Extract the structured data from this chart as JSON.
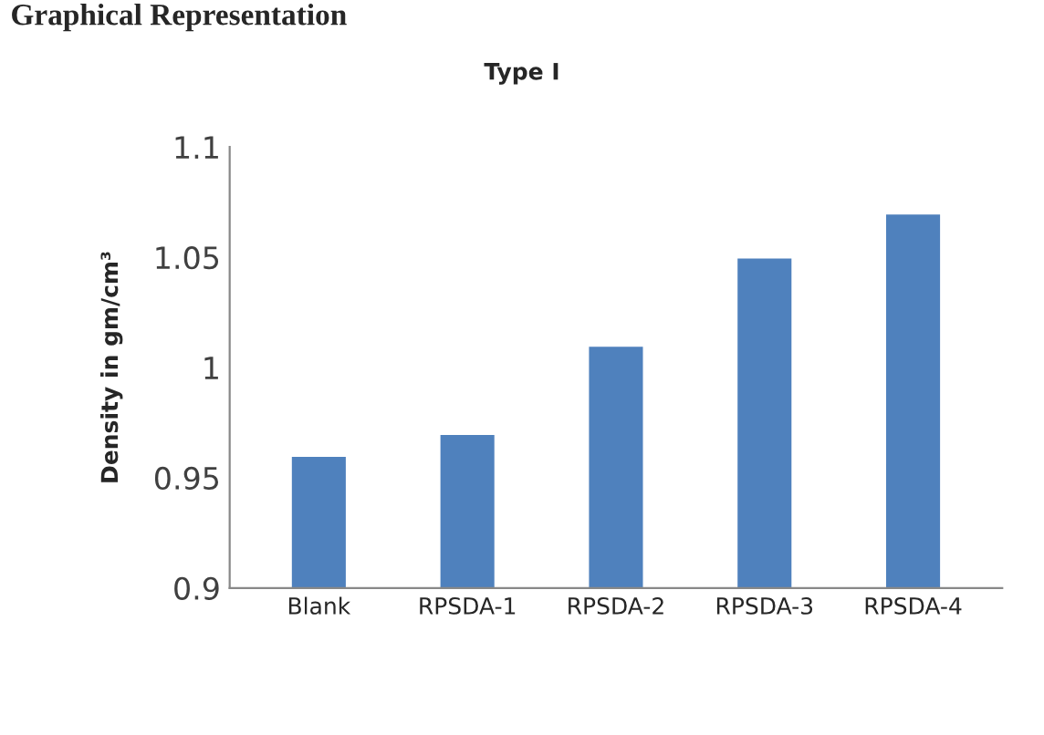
{
  "chart_data": {
    "type": "bar",
    "title": "Type I",
    "ylabel": "Density in gm/cm³",
    "annotations": [
      "Graphical Representation"
    ],
    "categories": [
      "Blank",
      "RPSDA-1",
      "RPSDA-2",
      "RPSDA-3",
      "RPSDA-4"
    ],
    "values": [
      0.96,
      0.97,
      1.01,
      1.05,
      1.07
    ],
    "color": "#4f81bd",
    "ylim": [
      0.9,
      1.1
    ],
    "yticks": [
      {
        "value": 0.9,
        "label": "0.9"
      },
      0.95,
      {
        "value": 1,
        "label": "1"
      },
      1.05,
      1.1
    ],
    "grid": false
  }
}
